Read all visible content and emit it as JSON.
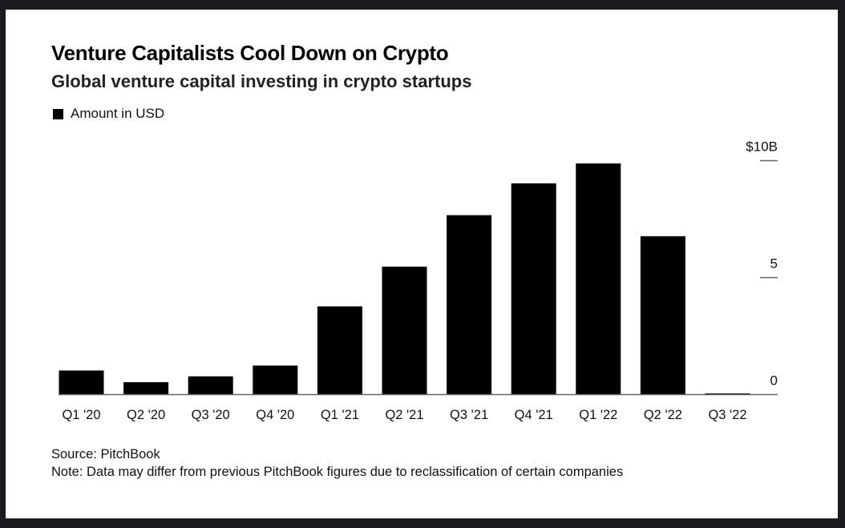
{
  "chart_data": {
    "type": "bar",
    "title": "Venture Capitalists Cool Down on Crypto",
    "subtitle": "Global venture capital investing in crypto startups",
    "legend": [
      {
        "name": "Amount in USD",
        "color": "#000000"
      }
    ],
    "legend_position": "top-left",
    "xlabel": "",
    "ylabel": "",
    "categories": [
      "Q1 '20",
      "Q2 '20",
      "Q3 '20",
      "Q4 '20",
      "Q1 '21",
      "Q2 '21",
      "Q3 '21",
      "Q4 '21",
      "Q1 '22",
      "Q2 '22",
      "Q3 '22"
    ],
    "series": [
      {
        "name": "Amount in USD",
        "unit": "billion USD",
        "values": [
          1.03,
          0.53,
          0.78,
          1.24,
          3.77,
          5.47,
          7.67,
          9.03,
          9.88,
          6.77,
          0.04
        ]
      }
    ],
    "ylim": [
      0,
      10
    ],
    "yticks": [
      {
        "value": 0,
        "label": "0"
      },
      {
        "value": 5,
        "label": "5"
      },
      {
        "value": 10,
        "label": "$10B"
      }
    ],
    "y_axis_position": "right",
    "grid": false,
    "bar_color": "#000000"
  },
  "footer": {
    "source": "Source: PitchBook",
    "note": "Note: Data may differ from previous PitchBook figures due to reclassification of certain companies"
  },
  "colors": {
    "background": "#1a1b1f",
    "card": "#ffffff",
    "bars": "#000000",
    "axis": "#666666"
  }
}
